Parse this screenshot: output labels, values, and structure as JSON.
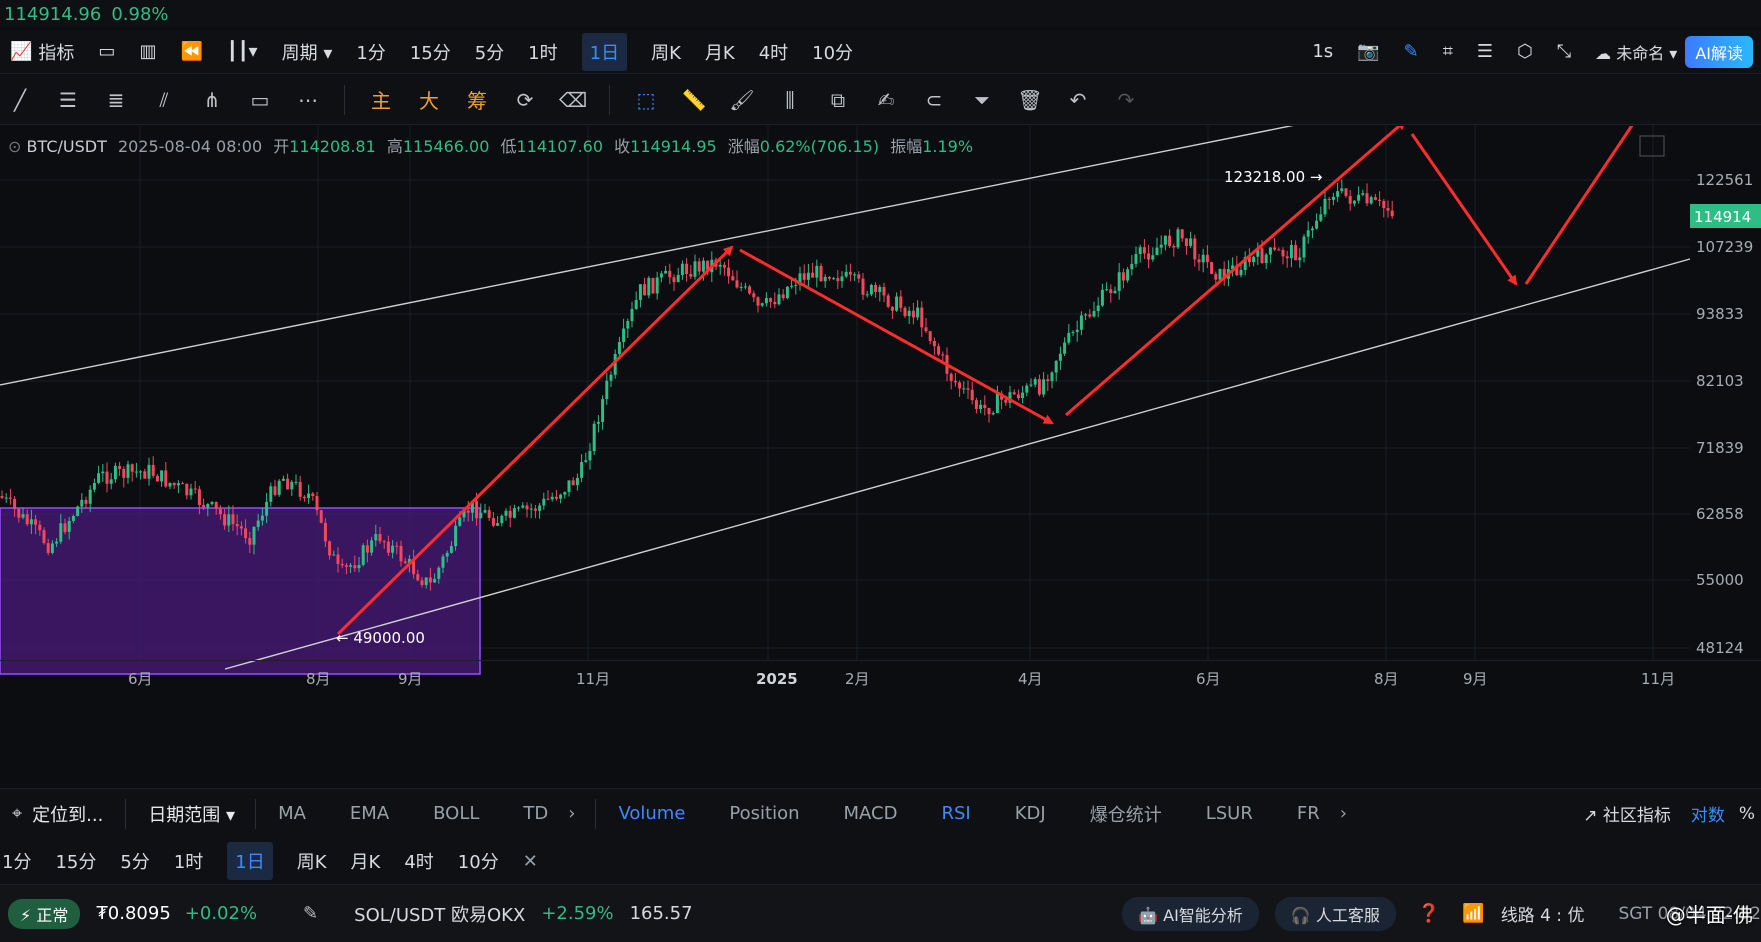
{
  "ticker": {
    "price": "114914.96",
    "change": "0.98%"
  },
  "toolbar": {
    "indicators": "指标",
    "period": "周期",
    "intervals": [
      "1分",
      "15分",
      "5分",
      "1时",
      "1日",
      "周K",
      "月K",
      "4时",
      "10分"
    ],
    "active_interval": "1日",
    "speed": "1s",
    "layout_name": "未命名",
    "ai_button": "AI解读"
  },
  "drawbar": {
    "main": "主",
    "big": "大",
    "chips": "筹"
  },
  "info": {
    "symbol": "BTC/USDT",
    "date": "2025-08-04 08:00",
    "open_label": "开",
    "open": "114208.81",
    "high_label": "高",
    "high": "115466.00",
    "low_label": "低",
    "low": "114107.60",
    "close_label": "收",
    "close": "114914.95",
    "change_label": "涨幅",
    "change": "0.62%(706.15)",
    "amp_label": "振幅",
    "amp": "1.19%"
  },
  "chart_data": {
    "type": "candlestick",
    "y_ticks": [
      "122561",
      "114914",
      "107239",
      "93833",
      "82103",
      "71839",
      "62858",
      "55000",
      "48124"
    ],
    "current_price_label": "114914",
    "x_ticks": [
      "6月",
      "8月",
      "9月",
      "11月",
      "2025",
      "2月",
      "4月",
      "6月",
      "8月",
      "9月",
      "11月"
    ],
    "annotations": {
      "high": "123218.00",
      "low": "49000.00"
    },
    "colors": {
      "up": "#2ebd85",
      "down": "#f6465d",
      "box": "#7b2fd6",
      "arrow": "#ff2d2d",
      "channel": "#d0d0d0"
    }
  },
  "bottom": {
    "locate": "定位到...",
    "date_range": "日期范围",
    "indicators_left": [
      "MA",
      "EMA",
      "BOLL",
      "TD"
    ],
    "indicators_right": [
      "Volume",
      "Position",
      "MACD",
      "RSI",
      "KDJ",
      "爆仓统计",
      "LSUR",
      "FR"
    ],
    "community": "社区指标",
    "log": "对数",
    "percent": "%"
  },
  "bottom2": {
    "intervals": [
      "1分",
      "15分",
      "5分",
      "1时",
      "1日",
      "周K",
      "月K",
      "4时",
      "10分"
    ],
    "active": "1日"
  },
  "status": {
    "state": "正常",
    "balance": "₮0.8095",
    "balance_change": "+0.02%",
    "pair": "SOL/USDT 欧易OKX",
    "pair_change": "+2.59%",
    "pair_price": "165.57",
    "ai_analysis": "AI智能分析",
    "service": "人工客服",
    "route": "线路 4 : 优",
    "time": "SGT 08/04 22:52",
    "watermark": "@半面-佛"
  }
}
